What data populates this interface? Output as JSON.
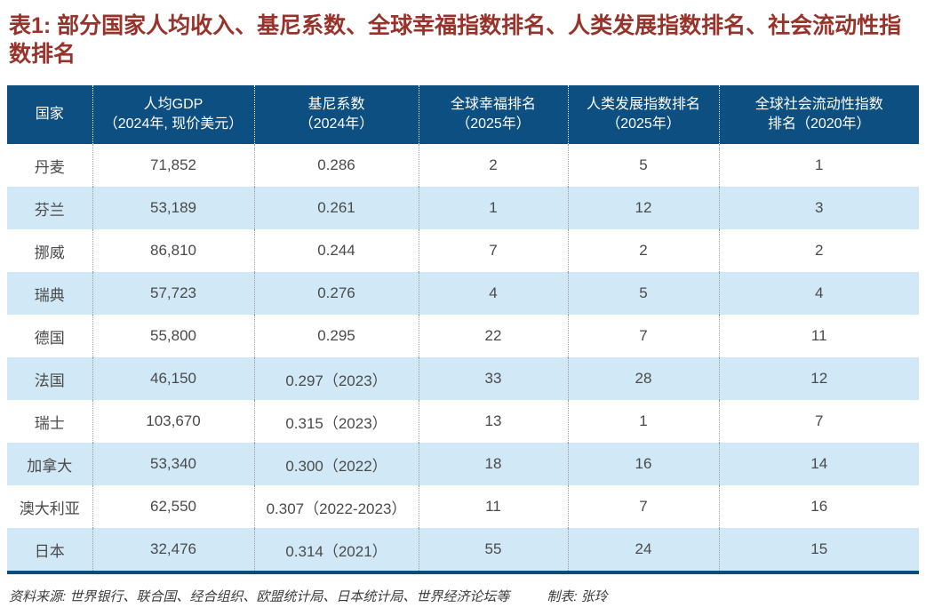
{
  "title": "表1: 部分国家人均收入、基尼系数、全球幸福指数排名、人类发展指数排名、社会流动性指数排名",
  "colors": {
    "title_text": "#97332b",
    "header_bg": "#0d4f80",
    "header_text": "#ffffff",
    "row_alt_bg": "#d1e8f6",
    "body_text": "#4a4a4a",
    "separator_body": "#9b9b9b",
    "separator_header": "#ffffff",
    "bottom_border": "#0a4d7c",
    "footer_text": "#3c3c3c"
  },
  "table": {
    "header": [
      {
        "line1": "国家",
        "line2": ""
      },
      {
        "line1": "人均GDP",
        "line2": "（2024年, 现价美元）"
      },
      {
        "line1": "基尼系数",
        "line2": "（2024年）"
      },
      {
        "line1": "全球幸福排名",
        "line2": "（2025年）"
      },
      {
        "line1": "人类发展指数排名",
        "line2": "（2025年）"
      },
      {
        "line1": "全球社会流动性指数",
        "line2": "排名（2020年）"
      }
    ],
    "rows": [
      [
        "丹麦",
        "71,852",
        "0.286",
        "2",
        "5",
        "1"
      ],
      [
        "芬兰",
        "53,189",
        "0.261",
        "1",
        "12",
        "3"
      ],
      [
        "挪威",
        "86,810",
        "0.244",
        "7",
        "2",
        "2"
      ],
      [
        "瑞典",
        "57,723",
        "0.276",
        "4",
        "5",
        "4"
      ],
      [
        "德国",
        "55,800",
        "0.295",
        "22",
        "7",
        "11"
      ],
      [
        "法国",
        "46,150",
        "0.297（2023）",
        "33",
        "28",
        "12"
      ],
      [
        "瑞士",
        "103,670",
        "0.315（2023）",
        "13",
        "1",
        "7"
      ],
      [
        "加拿大",
        "53,340",
        "0.300（2022）",
        "18",
        "16",
        "14"
      ],
      [
        "澳大利亚",
        "62,550",
        "0.307（2022-2023）",
        "11",
        "7",
        "16"
      ],
      [
        "日本",
        "32,476",
        "0.314（2021）",
        "55",
        "24",
        "15"
      ]
    ]
  },
  "footer": {
    "source": "资料来源: 世界银行、联合国、经合组织、欧盟统计局、日本统计局、世界经济论坛等",
    "credit": "制表: 张玲"
  },
  "chart_data": {
    "type": "table",
    "title": "表1: 部分国家人均收入、基尼系数、全球幸福指数排名、人类发展指数排名、社会流动性指数排名",
    "columns": [
      "国家",
      "人均GDP（2024年, 现价美元）",
      "基尼系数（2024年）",
      "全球幸福排名（2025年）",
      "人类发展指数排名（2025年）",
      "全球社会流动性指数排名（2020年）"
    ],
    "rows": [
      {
        "国家": "丹麦",
        "人均GDP": "71,852",
        "基尼系数": "0.286",
        "全球幸福排名": 2,
        "人类发展指数排名": 5,
        "全球社会流动性指数排名": 1
      },
      {
        "国家": "芬兰",
        "人均GDP": "53,189",
        "基尼系数": "0.261",
        "全球幸福排名": 1,
        "人类发展指数排名": 12,
        "全球社会流动性指数排名": 3
      },
      {
        "国家": "挪威",
        "人均GDP": "86,810",
        "基尼系数": "0.244",
        "全球幸福排名": 7,
        "人类发展指数排名": 2,
        "全球社会流动性指数排名": 2
      },
      {
        "国家": "瑞典",
        "人均GDP": "57,723",
        "基尼系数": "0.276",
        "全球幸福排名": 4,
        "人类发展指数排名": 5,
        "全球社会流动性指数排名": 4
      },
      {
        "国家": "德国",
        "人均GDP": "55,800",
        "基尼系数": "0.295",
        "全球幸福排名": 22,
        "人类发展指数排名": 7,
        "全球社会流动性指数排名": 11
      },
      {
        "国家": "法国",
        "人均GDP": "46,150",
        "基尼系数": "0.297（2023）",
        "全球幸福排名": 33,
        "人类发展指数排名": 28,
        "全球社会流动性指数排名": 12
      },
      {
        "国家": "瑞士",
        "人均GDP": "103,670",
        "基尼系数": "0.315（2023）",
        "全球幸福排名": 13,
        "人类发展指数排名": 1,
        "全球社会流动性指数排名": 7
      },
      {
        "国家": "加拿大",
        "人均GDP": "53,340",
        "基尼系数": "0.300（2022）",
        "全球幸福排名": 18,
        "人类发展指数排名": 16,
        "全球社会流动性指数排名": 14
      },
      {
        "国家": "澳大利亚",
        "人均GDP": "62,550",
        "基尼系数": "0.307（2022-2023）",
        "全球幸福排名": 11,
        "人类发展指数排名": 7,
        "全球社会流动性指数排名": 16
      },
      {
        "国家": "日本",
        "人均GDP": "32,476",
        "基尼系数": "0.314（2021）",
        "全球幸福排名": 55,
        "人类发展指数排名": 24,
        "全球社会流动性指数排名": 15
      }
    ]
  }
}
